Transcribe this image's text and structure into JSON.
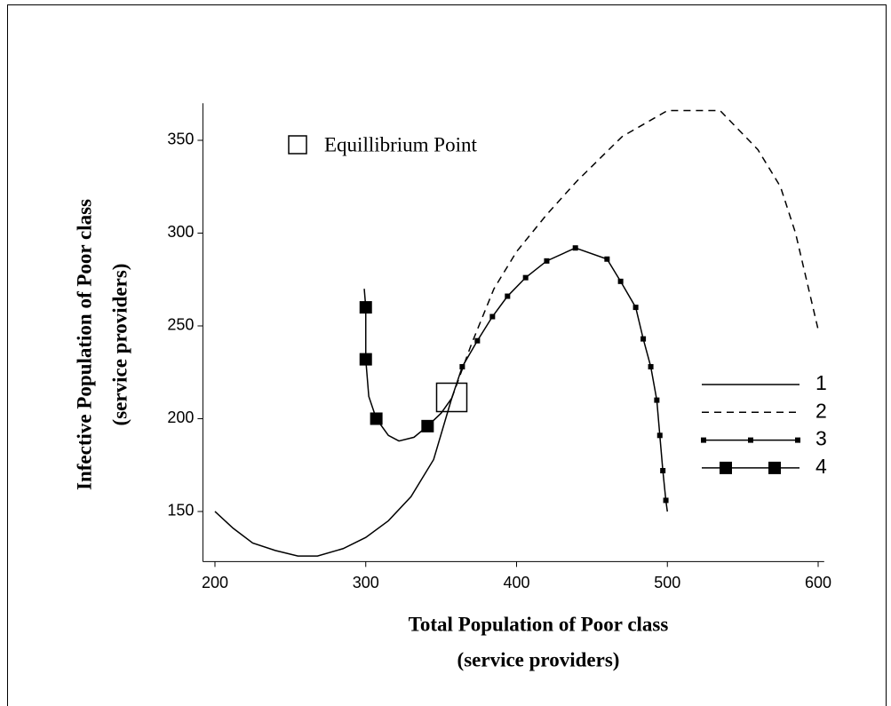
{
  "chart_data": {
    "type": "line",
    "xlabel": [
      "Total Population of Poor class",
      "(service providers)"
    ],
    "ylabel": [
      "Infective Population of Poor class",
      "(service providers)"
    ],
    "xlim": [
      192,
      604
    ],
    "ylim": [
      123,
      370
    ],
    "xticks": [
      200,
      300,
      400,
      500,
      600
    ],
    "yticks": [
      150,
      200,
      250,
      300,
      350
    ],
    "annotation": {
      "label": "Equillibrium Point",
      "x": 357,
      "y": 211
    },
    "series": [
      {
        "name": "1",
        "style": "solid",
        "x": [
          200,
          212,
          225,
          240,
          255,
          268,
          285,
          300,
          315,
          330,
          345,
          357
        ],
        "y": [
          150,
          141,
          133,
          129,
          126,
          126,
          130,
          136,
          145,
          158,
          178,
          211
        ]
      },
      {
        "name": "2",
        "style": "dashed",
        "x": [
          357,
          370,
          385,
          400,
          420,
          440,
          470,
          500,
          535,
          560,
          575,
          585,
          600
        ],
        "y": [
          211,
          240,
          270,
          290,
          310,
          328,
          352,
          366,
          366,
          345,
          325,
          300,
          248
        ]
      },
      {
        "name": "3",
        "style": "small-squares",
        "x": [
          357,
          364,
          374,
          384,
          394,
          406,
          420,
          439,
          460,
          469,
          479,
          484,
          489,
          493,
          495,
          497,
          499,
          500
        ],
        "y": [
          211,
          228,
          242,
          255,
          266,
          276,
          285,
          292,
          286,
          274,
          260,
          243,
          228,
          210,
          191,
          172,
          156,
          150
        ],
        "markers": {
          "x": [
            364,
            374,
            384,
            394,
            406,
            420,
            439,
            460,
            469,
            479,
            484,
            489,
            493,
            495,
            497,
            499
          ],
          "y": [
            228,
            242,
            255,
            266,
            276,
            285,
            292,
            286,
            274,
            260,
            243,
            228,
            210,
            191,
            172,
            156
          ]
        }
      },
      {
        "name": "4",
        "style": "big-squares",
        "x": [
          299,
          300,
          300,
          302,
          307,
          315,
          322,
          332,
          341,
          350,
          357
        ],
        "y": [
          270,
          260,
          232,
          212,
          200,
          191,
          188,
          190,
          196,
          203,
          211
        ],
        "markers": {
          "x": [
            300,
            300,
            307,
            341
          ],
          "y": [
            260,
            232,
            200,
            196
          ]
        }
      }
    ]
  }
}
